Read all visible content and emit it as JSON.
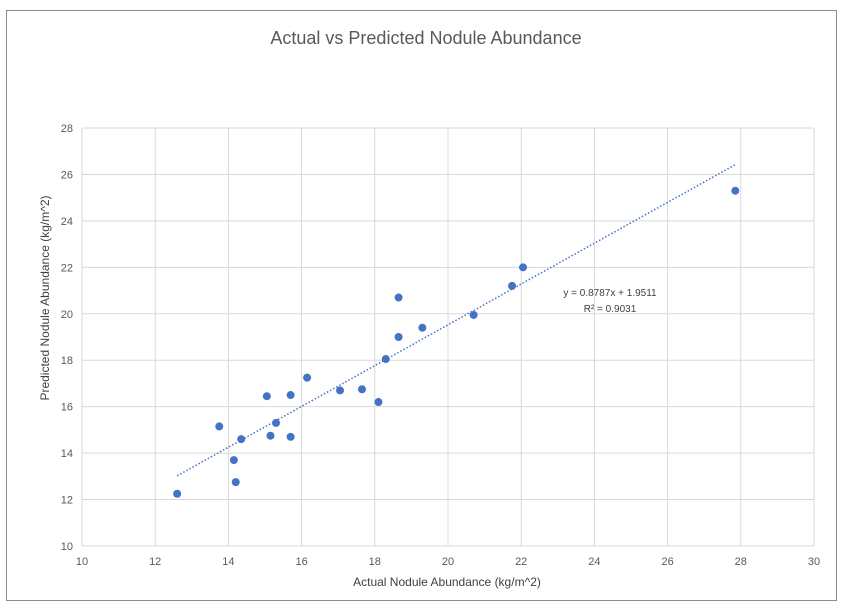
{
  "chart_data": {
    "type": "scatter",
    "title": "Actual vs Predicted Nodule Abundance",
    "xlabel": "Actual Nodule Abundance (kg/m^2)",
    "ylabel": "Predicted Nodule Abundance (kg/m^2)",
    "xlim": [
      10,
      30
    ],
    "ylim": [
      10,
      28
    ],
    "xticks": [
      "10",
      "12",
      "14",
      "16",
      "18",
      "20",
      "22",
      "24",
      "26",
      "28",
      "30"
    ],
    "yticks": [
      "10",
      "12",
      "14",
      "16",
      "18",
      "20",
      "22",
      "24",
      "26",
      "28"
    ],
    "grid": true,
    "point_color": "#4472C4",
    "series": [
      {
        "name": "Nodule Abundance",
        "x": [
          12.6,
          13.75,
          14.15,
          14.2,
          14.35,
          15.05,
          15.15,
          15.3,
          15.7,
          15.7,
          16.15,
          17.05,
          17.65,
          18.1,
          18.3,
          18.65,
          18.65,
          19.3,
          20.7,
          21.75,
          22.05,
          27.85
        ],
        "y": [
          12.25,
          15.15,
          13.7,
          12.75,
          14.6,
          16.45,
          14.75,
          15.3,
          16.5,
          14.7,
          17.25,
          16.7,
          16.75,
          16.2,
          18.05,
          20.7,
          19.0,
          19.4,
          19.95,
          21.2,
          22.0,
          25.3
        ]
      }
    ],
    "trendline": {
      "type": "linear",
      "slope": 0.8787,
      "intercept": 1.9511,
      "x_range": [
        12.6,
        27.85
      ],
      "color": "#4472C4",
      "equation_label": "y = 0.8787x + 1.9511",
      "r2_label": "R² = 0.9031"
    }
  }
}
